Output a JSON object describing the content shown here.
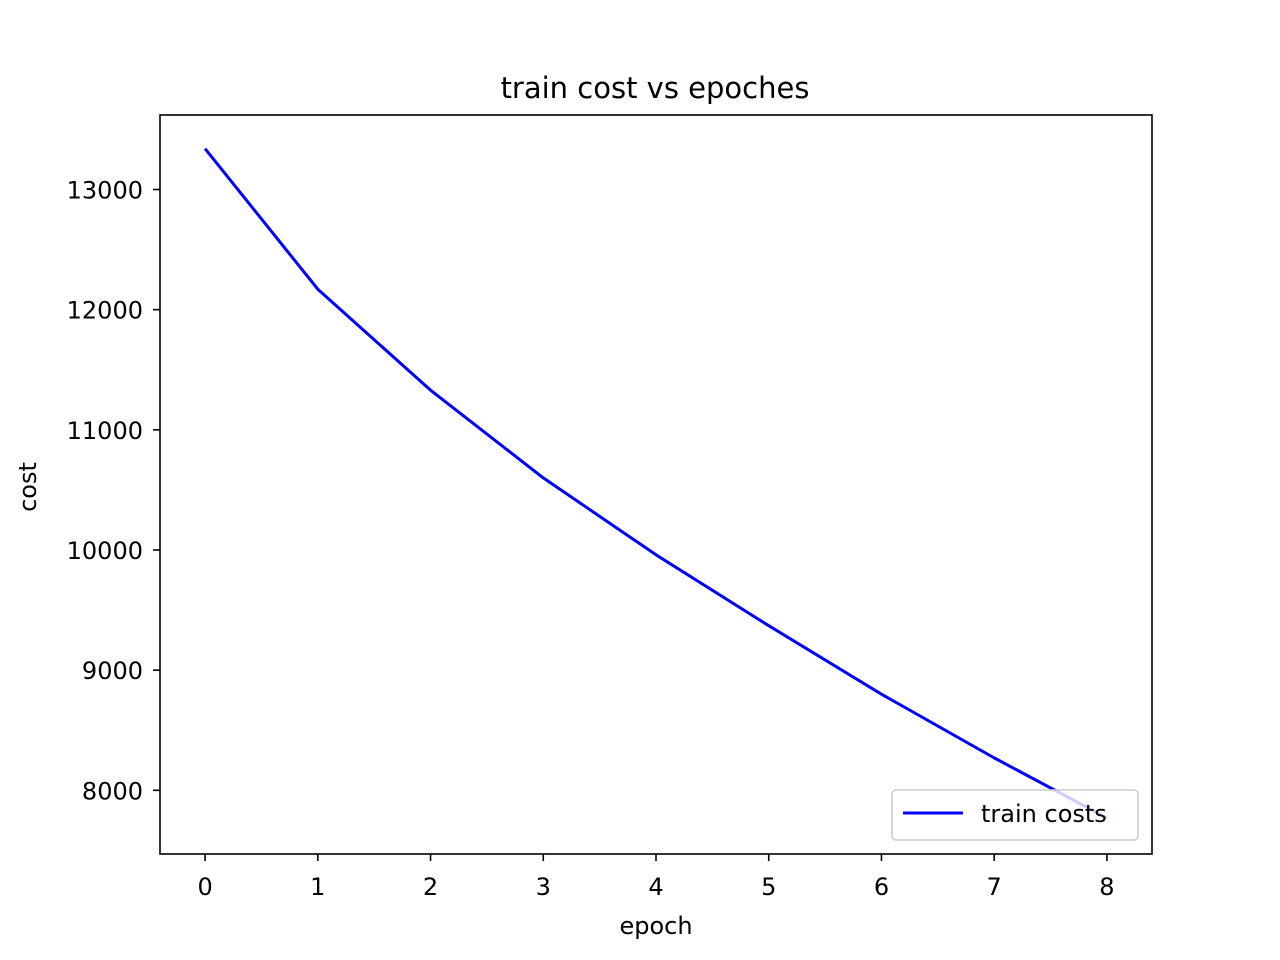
{
  "chart_data": {
    "type": "line",
    "title": "train cost vs epoches",
    "xlabel": "epoch",
    "ylabel": "cost",
    "x": [
      0,
      1,
      2,
      3,
      4,
      5,
      6,
      7,
      8
    ],
    "xticks": [
      0,
      1,
      2,
      3,
      4,
      5,
      6,
      7,
      8
    ],
    "yticks": [
      8000,
      9000,
      10000,
      11000,
      12000,
      13000
    ],
    "xlim": [
      -0.4,
      8.4
    ],
    "ylim": [
      7470,
      13620
    ],
    "grid": false,
    "legend_position": "lower right",
    "series": [
      {
        "name": "train costs",
        "color": "#0000ff",
        "values": [
          13340,
          12170,
          11330,
          10600,
          9960,
          9370,
          8800,
          8270,
          7770
        ]
      }
    ]
  }
}
